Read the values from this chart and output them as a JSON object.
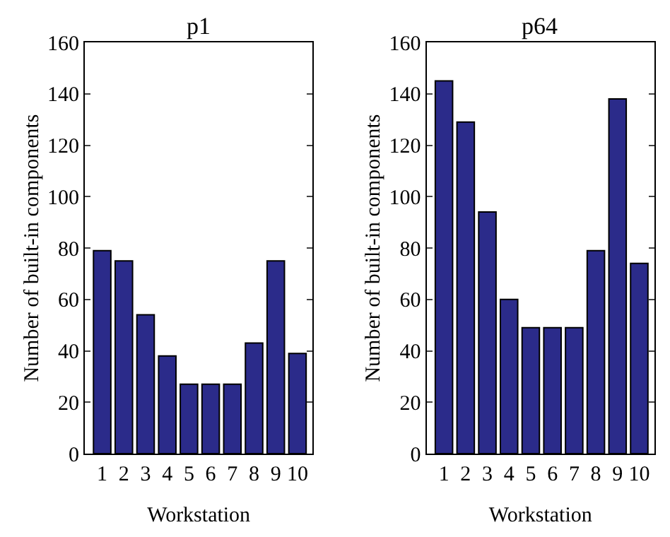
{
  "chart_data": [
    {
      "type": "bar",
      "title": "p1",
      "xlabel": "Workstation",
      "ylabel": "Number of built-in components",
      "categories": [
        "1",
        "2",
        "3",
        "4",
        "5",
        "6",
        "7",
        "8",
        "9",
        "10"
      ],
      "values": [
        79,
        75,
        54,
        38,
        27,
        27,
        27,
        43,
        75,
        39
      ],
      "color": "#2b2b8a",
      "ylim": [
        0,
        160
      ],
      "yticks": [
        0,
        20,
        40,
        60,
        80,
        100,
        120,
        140,
        160
      ]
    },
    {
      "type": "bar",
      "title": "p64",
      "xlabel": "Workstation",
      "ylabel": "Number of built-in components",
      "categories": [
        "1",
        "2",
        "3",
        "4",
        "5",
        "6",
        "7",
        "8",
        "9",
        "10"
      ],
      "values": [
        145,
        129,
        94,
        60,
        49,
        49,
        49,
        79,
        138,
        74
      ],
      "color": "#2b2b8a",
      "ylim": [
        0,
        160
      ],
      "yticks": [
        0,
        20,
        40,
        60,
        80,
        100,
        120,
        140,
        160
      ]
    }
  ]
}
